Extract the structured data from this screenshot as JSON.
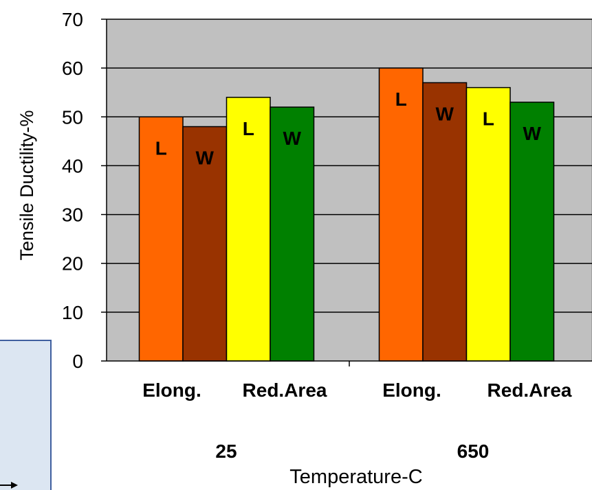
{
  "chart_data": {
    "type": "bar",
    "ylabel": "Tensile Ductility-%",
    "xlabel": "Temperature-C",
    "ylim": [
      0,
      70
    ],
    "yticks": [
      "0",
      "10",
      "20",
      "30",
      "40",
      "50",
      "60",
      "70"
    ],
    "grid": true,
    "temperatures": [
      {
        "label": "25",
        "groups": [
          {
            "label": "Elong.",
            "bars": [
              {
                "letter": "L",
                "value": 50,
                "color": "#ff6600"
              },
              {
                "letter": "W",
                "value": 48,
                "color": "#993300"
              }
            ]
          },
          {
            "label": "Red.Area",
            "bars": [
              {
                "letter": "L",
                "value": 54,
                "color": "#ffff00"
              },
              {
                "letter": "W",
                "value": 52,
                "color": "#008000"
              }
            ]
          }
        ]
      },
      {
        "label": "650",
        "groups": [
          {
            "label": "Elong.",
            "bars": [
              {
                "letter": "L",
                "value": 60,
                "color": "#ff6600"
              },
              {
                "letter": "W",
                "value": 57,
                "color": "#993300"
              }
            ]
          },
          {
            "label": "Red.Area",
            "bars": [
              {
                "letter": "L",
                "value": 56,
                "color": "#ffff00"
              },
              {
                "letter": "W",
                "value": 53,
                "color": "#008000"
              }
            ]
          }
        ]
      }
    ]
  },
  "overlay_box": {
    "fill": "#dce6f2",
    "border": "#3f5f9f",
    "arrow_icon": "arrow-right-icon"
  }
}
